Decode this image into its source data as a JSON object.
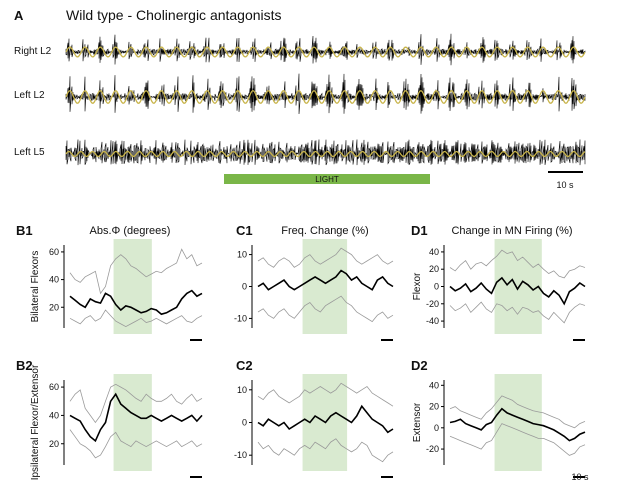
{
  "figure_title": "Wild type - Cholinergic antagonists",
  "panel_a": {
    "letter": "A",
    "traces": [
      {
        "label": "Right L2",
        "rhythmic": true
      },
      {
        "label": "Left L2",
        "rhythmic": true
      },
      {
        "label": "Left L5",
        "rhythmic": false
      }
    ],
    "light_label": "LIGHT",
    "scale_label": "10 s",
    "colors": {
      "raw": "#000000",
      "filtered": "#c8b44a",
      "light": "#7ab648"
    }
  },
  "chart_data": [
    {
      "type": "line",
      "panel": "B1",
      "title": "Abs.Φ (degrees)",
      "ylabel": "Bilateral Flexors",
      "yticks": [
        20,
        40,
        60
      ],
      "ylim": [
        5,
        65
      ],
      "light_window": [
        0.33,
        0.62
      ],
      "series": [
        {
          "values": [
            28,
            25,
            22,
            20,
            26,
            24,
            23,
            30,
            28,
            22,
            18,
            21,
            20,
            18,
            16,
            17,
            19,
            18,
            15,
            16,
            18,
            20,
            26,
            30,
            32,
            28,
            30
          ]
        },
        {
          "values": [
            45,
            40,
            38,
            42,
            44,
            46,
            30,
            35,
            50,
            55,
            58,
            55,
            50,
            48,
            45,
            42,
            44,
            46,
            45,
            48,
            50,
            52,
            62,
            55,
            58,
            50,
            52
          ]
        },
        {
          "values": [
            12,
            10,
            8,
            12,
            14,
            10,
            12,
            18,
            14,
            10,
            8,
            6,
            8,
            10,
            12,
            9,
            10,
            12,
            10,
            8,
            10,
            12,
            14,
            10,
            9,
            12,
            14
          ]
        }
      ]
    },
    {
      "type": "line",
      "panel": "B2",
      "ylabel": "Ipsilateral Flexor/Extensor",
      "yticks": [
        20,
        40,
        60
      ],
      "ylim": [
        5,
        65
      ],
      "light_window": [
        0.33,
        0.62
      ],
      "series": [
        {
          "values": [
            40,
            38,
            36,
            30,
            25,
            22,
            30,
            35,
            50,
            55,
            48,
            45,
            42,
            40,
            38,
            38,
            40,
            38,
            36,
            38,
            40,
            38,
            36,
            38,
            40,
            36,
            40
          ]
        },
        {
          "values": [
            50,
            55,
            58,
            45,
            40,
            35,
            40,
            50,
            60,
            62,
            60,
            58,
            55,
            52,
            50,
            55,
            52,
            50,
            50,
            52,
            55,
            50,
            48,
            52,
            55,
            50,
            52
          ]
        },
        {
          "values": [
            30,
            25,
            20,
            18,
            15,
            10,
            12,
            18,
            25,
            28,
            22,
            20,
            18,
            22,
            20,
            18,
            20,
            22,
            20,
            18,
            20,
            22,
            18,
            20,
            22,
            18,
            20
          ]
        }
      ]
    },
    {
      "type": "line",
      "panel": "C1",
      "title": "Freq. Change (%)",
      "yticks": [
        -10,
        0,
        10
      ],
      "ylim": [
        -13,
        13
      ],
      "light_window": [
        0.33,
        0.66
      ],
      "series": [
        {
          "values": [
            0,
            1,
            -1,
            0,
            1,
            2,
            0,
            -1,
            0,
            1,
            2,
            3,
            2,
            1,
            2,
            3,
            5,
            4,
            2,
            3,
            1,
            0,
            -1,
            2,
            3,
            1,
            0
          ]
        },
        {
          "values": [
            8,
            9,
            7,
            6,
            8,
            9,
            8,
            6,
            7,
            9,
            10,
            8,
            7,
            8,
            9,
            10,
            12,
            11,
            10,
            8,
            7,
            8,
            9,
            10,
            8,
            7,
            8
          ]
        },
        {
          "values": [
            -8,
            -7,
            -9,
            -10,
            -8,
            -7,
            -9,
            -10,
            -8,
            -6,
            -5,
            -7,
            -8,
            -6,
            -5,
            -4,
            -3,
            -5,
            -6,
            -8,
            -9,
            -10,
            -11,
            -9,
            -8,
            -10,
            -9
          ]
        }
      ]
    },
    {
      "type": "line",
      "panel": "C2",
      "yticks": [
        -10,
        0,
        10
      ],
      "ylim": [
        -13,
        13
      ],
      "light_window": [
        0.33,
        0.66
      ],
      "series": [
        {
          "values": [
            0,
            -1,
            1,
            0,
            -1,
            0,
            -2,
            -1,
            0,
            1,
            0,
            2,
            1,
            0,
            2,
            3,
            2,
            1,
            0,
            2,
            5,
            3,
            1,
            0,
            -1,
            -3,
            -2
          ]
        },
        {
          "values": [
            8,
            7,
            9,
            10,
            8,
            7,
            6,
            7,
            8,
            10,
            9,
            10,
            11,
            10,
            9,
            10,
            12,
            11,
            10,
            9,
            10,
            11,
            9,
            8,
            7,
            6,
            5
          ]
        },
        {
          "values": [
            -6,
            -8,
            -7,
            -9,
            -10,
            -8,
            -9,
            -10,
            -8,
            -7,
            -8,
            -6,
            -7,
            -8,
            -6,
            -5,
            -7,
            -8,
            -9,
            -8,
            -6,
            -7,
            -10,
            -11,
            -12,
            -10,
            -9
          ]
        }
      ]
    },
    {
      "type": "line",
      "panel": "D1",
      "title": "Change in MN Firing (%)",
      "ylabel": "Flexor",
      "yticks": [
        -40,
        -20,
        0,
        20,
        40
      ],
      "ylim": [
        -48,
        48
      ],
      "light_window": [
        0.33,
        0.68
      ],
      "series": [
        {
          "values": [
            0,
            -5,
            -2,
            3,
            -6,
            -2,
            4,
            -3,
            -8,
            5,
            10,
            2,
            8,
            -3,
            6,
            2,
            -4,
            0,
            -8,
            -12,
            -5,
            -10,
            -20,
            -6,
            -2,
            4,
            0
          ]
        },
        {
          "values": [
            22,
            18,
            25,
            30,
            20,
            26,
            28,
            24,
            30,
            35,
            42,
            38,
            40,
            30,
            34,
            28,
            22,
            26,
            20,
            15,
            18,
            12,
            10,
            18,
            20,
            24,
            22
          ]
        },
        {
          "values": [
            -22,
            -28,
            -25,
            -20,
            -30,
            -24,
            -18,
            -26,
            -30,
            -20,
            -22,
            -28,
            -24,
            -32,
            -24,
            -26,
            -30,
            -28,
            -34,
            -38,
            -30,
            -36,
            -42,
            -30,
            -24,
            -20,
            -22
          ]
        }
      ]
    },
    {
      "type": "line",
      "panel": "D2",
      "ylabel": "Extensor",
      "yticks": [
        -20,
        0,
        20,
        40
      ],
      "ylim": [
        -35,
        45
      ],
      "light_window": [
        0.33,
        0.68
      ],
      "series": [
        {
          "values": [
            5,
            6,
            8,
            4,
            2,
            0,
            -2,
            3,
            5,
            12,
            18,
            14,
            12,
            10,
            8,
            6,
            4,
            3,
            2,
            0,
            -2,
            -5,
            -8,
            -12,
            -10,
            -6,
            -4
          ]
        },
        {
          "values": [
            18,
            20,
            16,
            14,
            12,
            10,
            8,
            14,
            18,
            24,
            30,
            28,
            26,
            22,
            20,
            18,
            16,
            15,
            14,
            12,
            10,
            8,
            4,
            2,
            0,
            4,
            6
          ]
        },
        {
          "values": [
            -8,
            -10,
            -12,
            -14,
            -16,
            -18,
            -20,
            -14,
            -12,
            -4,
            4,
            2,
            0,
            -2,
            -4,
            -6,
            -8,
            -10,
            -10,
            -12,
            -14,
            -18,
            -22,
            -26,
            -24,
            -18,
            -16
          ]
        }
      ]
    }
  ],
  "scale_labels": {
    "d2": "10 s"
  }
}
